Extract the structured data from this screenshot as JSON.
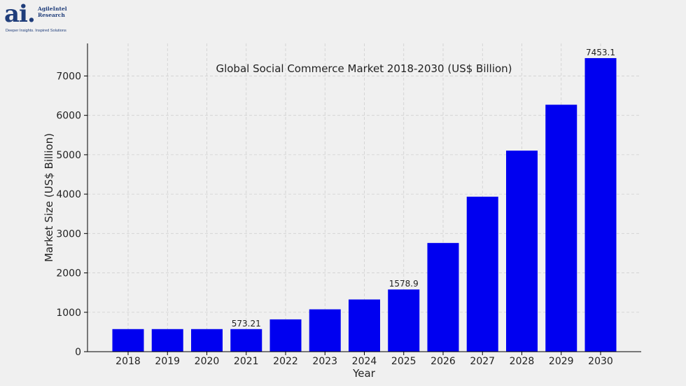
{
  "logo": {
    "mark": "ai.",
    "name_line1": "AgileIntel",
    "name_line2": "Research",
    "tagline": "Deeper Insights. Inspired Solutions"
  },
  "chart_data": {
    "type": "bar",
    "title": "Global Social Commerce Market 2018-2030 (US$ Billion)",
    "xlabel": "Year",
    "ylabel": "Market Size (US$ Billion)",
    "categories": [
      "2018",
      "2019",
      "2020",
      "2021",
      "2022",
      "2023",
      "2024",
      "2025",
      "2026",
      "2027",
      "2028",
      "2029",
      "2030"
    ],
    "values": [
      573.21,
      573.21,
      573.21,
      573.21,
      820,
      1075,
      1325,
      1578.9,
      2760,
      3935,
      5105,
      6270,
      7453.1
    ],
    "data_labels": [
      {
        "index": 3,
        "text": "573.21"
      },
      {
        "index": 7,
        "text": "1578.9"
      },
      {
        "index": 12,
        "text": "7453.1"
      }
    ],
    "yticks": [
      0,
      1000,
      2000,
      3000,
      4000,
      5000,
      6000,
      7000
    ],
    "ylim": [
      0,
      7826
    ],
    "grid": true,
    "bar_color": "#0000f0"
  }
}
